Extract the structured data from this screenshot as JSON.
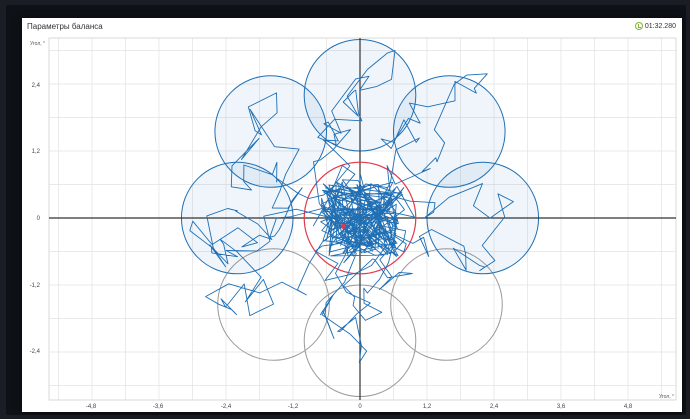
{
  "window": {
    "title": "Параметры баланса",
    "timer": "01:32.280",
    "icons": {
      "timer": "clock-icon"
    },
    "colors": {
      "accent": "#7fb33a",
      "trace": "#1f6fb5",
      "target": "#e0394b",
      "inactive": "#9a9a9a"
    }
  },
  "chart_data": {
    "type": "scatter",
    "title": "",
    "xlabel": "Угол, °",
    "ylabel": "Угол, °",
    "xlim": [
      -3.6,
      3.6
    ],
    "ylim": [
      -3.0,
      3.0
    ],
    "x_ticks": [
      "-4,8",
      "-3,6",
      "-2,4",
      "-1,2",
      "0",
      "1,2",
      "2,4",
      "3,6",
      "4,8"
    ],
    "y_ticks": [
      "2,4",
      "1,2",
      "0",
      "-1,2",
      "-2,4"
    ],
    "grid": true,
    "center_target": {
      "x": 0,
      "y": 0,
      "r": 1.0,
      "color": "#e0394b"
    },
    "targets_reached": [
      {
        "x": 0,
        "y": 2.2,
        "r": 1.0
      },
      {
        "x": 1.6,
        "y": 1.55,
        "r": 1.0
      },
      {
        "x": 2.2,
        "y": 0,
        "r": 1.0
      },
      {
        "x": -1.6,
        "y": 1.55,
        "r": 1.0
      },
      {
        "x": -2.2,
        "y": 0,
        "r": 1.0
      }
    ],
    "targets_pending": [
      {
        "x": -1.55,
        "y": -1.55,
        "r": 1.0
      },
      {
        "x": 0,
        "y": -2.2,
        "r": 1.0
      },
      {
        "x": 1.55,
        "y": -1.55,
        "r": 1.0
      }
    ],
    "marker": {
      "x": -0.3,
      "y": -0.15
    }
  }
}
